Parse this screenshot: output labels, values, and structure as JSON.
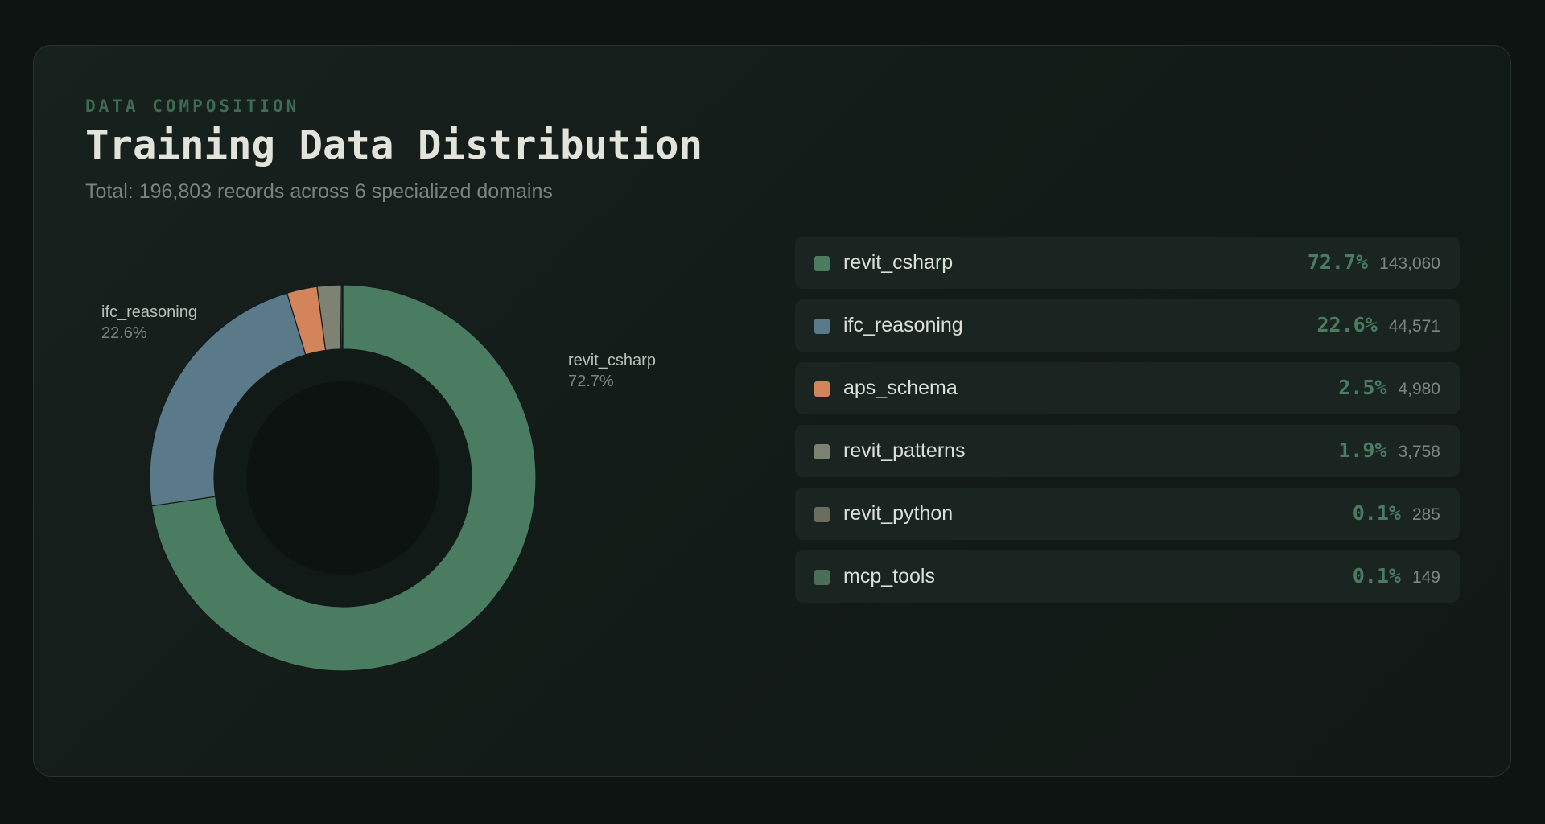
{
  "header": {
    "eyebrow": "DATA COMPOSITION",
    "title": "Training Data Distribution",
    "subtitle": "Total: 196,803 records across 6 specialized domains"
  },
  "chart_data": {
    "type": "pie",
    "variant": "donut",
    "title": "Training Data Distribution",
    "total": 196803,
    "labels": [
      "revit_csharp",
      "ifc_reasoning",
      "aps_schema",
      "revit_patterns",
      "revit_python",
      "mcp_tools"
    ],
    "values": [
      143060,
      44571,
      4980,
      3758,
      285,
      149
    ],
    "percentages": [
      "72.7%",
      "22.6%",
      "2.5%",
      "1.9%",
      "0.1%",
      "0.1%"
    ],
    "counts": [
      "143,060",
      "44,571",
      "4,980",
      "3,758",
      "285",
      "149"
    ],
    "colors": [
      "#4a7c62",
      "#5a7a8a",
      "#d4845a",
      "#7d8272",
      "#6b6e5f",
      "#4a6e5a"
    ],
    "callouts": [
      {
        "name": "ifc_reasoning",
        "pct": "22.6%"
      },
      {
        "name": "revit_csharp",
        "pct": "72.7%"
      }
    ],
    "legend_position": "right"
  }
}
